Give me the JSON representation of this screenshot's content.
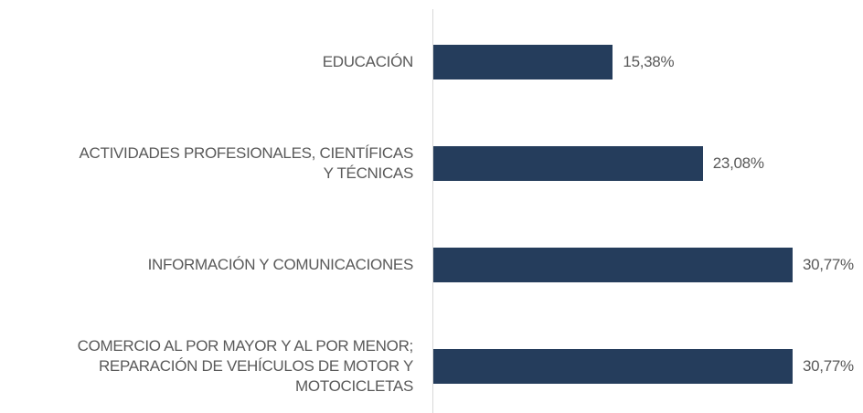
{
  "chart_data": {
    "type": "barh",
    "categories": [
      "EDUCACIÓN",
      "ACTIVIDADES PROFESIONALES, CIENTÍFICAS\nY TÉCNICAS",
      "INFORMACIÓN Y COMUNICACIONES",
      "COMERCIO AL POR MAYOR Y AL POR MENOR;\nREPARACIÓN DE VEHÍCULOS DE MOTOR Y\nMOTOCICLETAS"
    ],
    "values": [
      15.38,
      23.08,
      30.77,
      30.77
    ],
    "value_labels": [
      "15,38%",
      "23,08%",
      "30,77%",
      "30,77%"
    ],
    "color": "#253d5c"
  }
}
